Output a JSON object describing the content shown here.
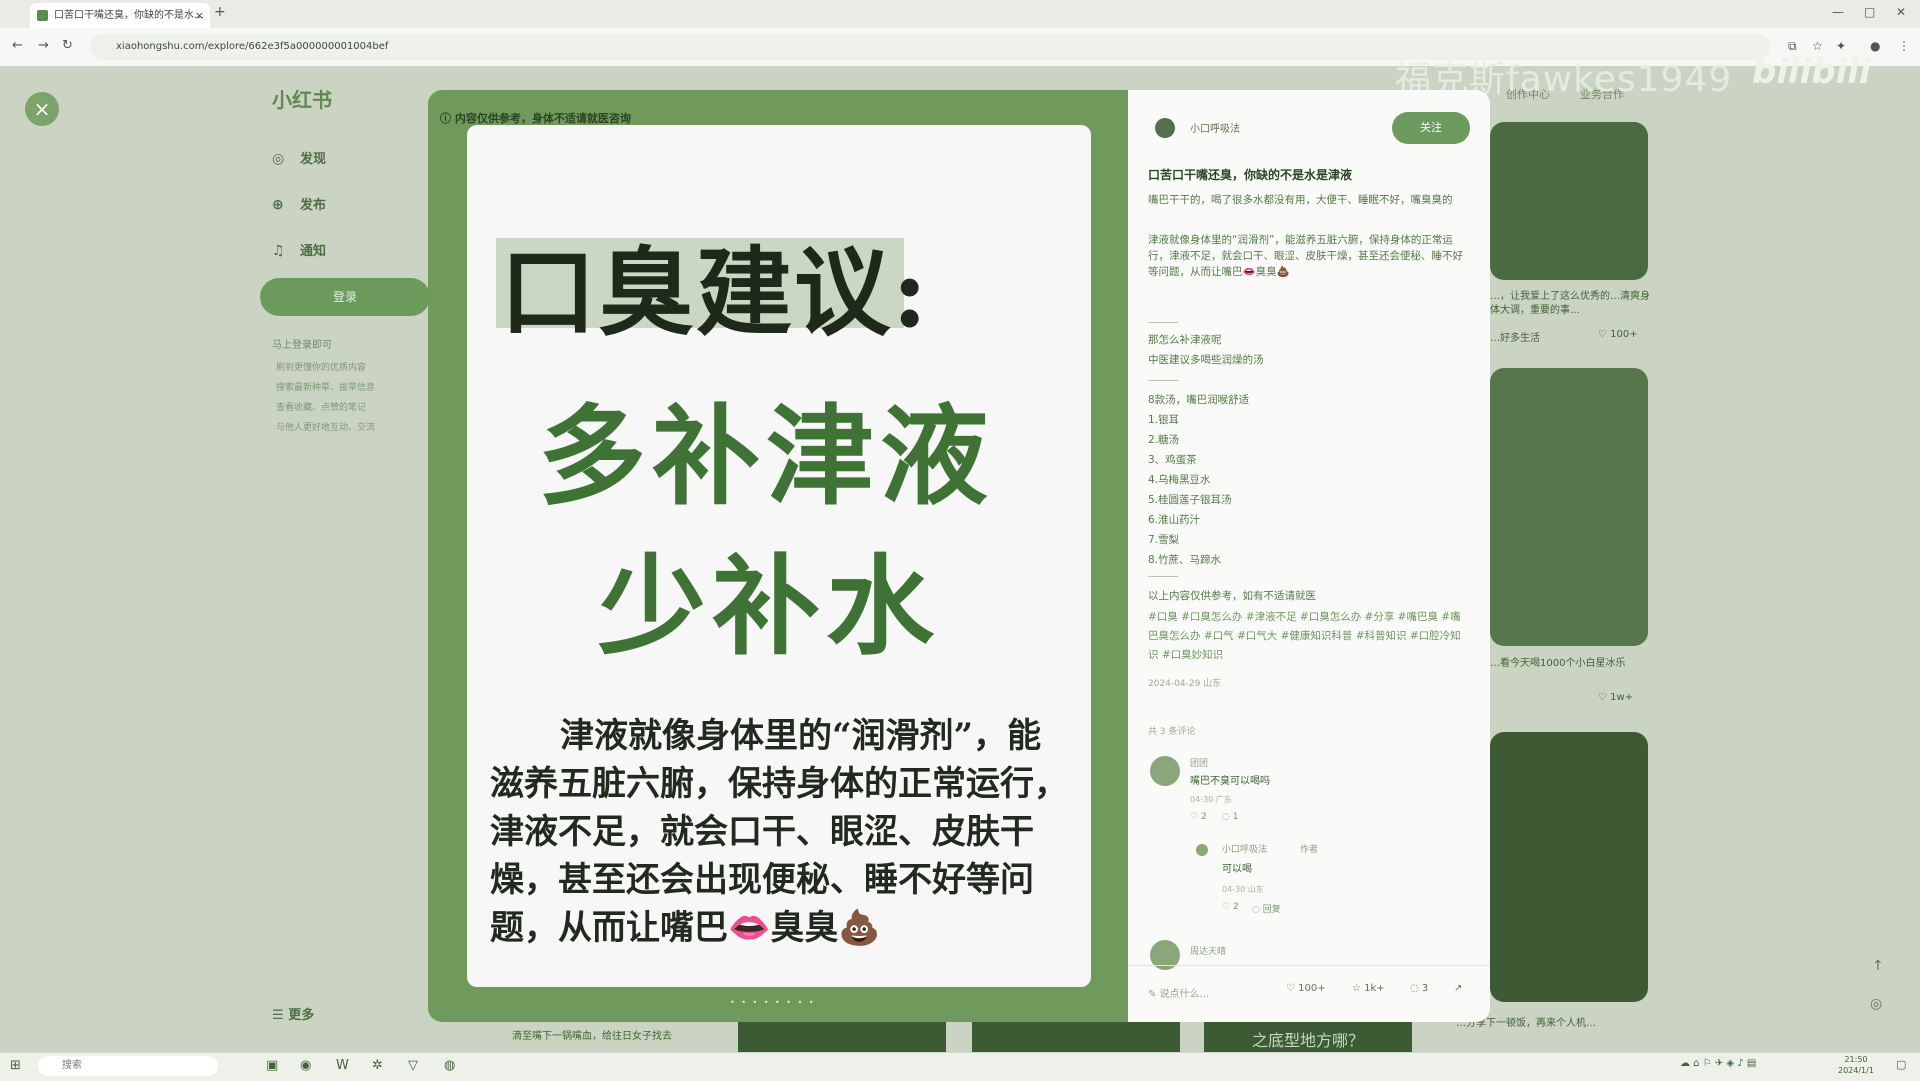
{
  "browser": {
    "tab_title": "口苦口干嘴还臭，你缺的不是水…",
    "new_tab_icon": "+",
    "url": "xiaohongshu.com/explore/662e3f5a000000001004bef"
  },
  "site": {
    "logo": "小红书",
    "nav": [
      {
        "label": "发现",
        "icon": "compass-icon"
      },
      {
        "label": "发布",
        "icon": "plus-icon"
      },
      {
        "label": "通知",
        "icon": "bell-icon"
      }
    ],
    "login": "登录",
    "sidebar_heading": "马上登录即可",
    "sidebar_lines": [
      "刷到更懂你的优质内容",
      "搜索最新种草、拔草信息",
      "查看收藏、点赞的笔记",
      "与他人更好地互动、交流"
    ],
    "more": "更多",
    "top_links": [
      "创作中心",
      "业务合作"
    ],
    "watermark": "福克斯fawkes1949",
    "bili": "bilibili"
  },
  "feed": {
    "cards": [
      {
        "caption": "…，让我爱上了这么优秀的…清爽身体大调，重要的事…",
        "author": "…好多生活",
        "likes": "100+"
      },
      {
        "caption": "…看今天喝1000个小白星冰乐",
        "author": "…",
        "likes": "1w+"
      },
      {
        "caption": "…分享下一顿饭，再来个人机…",
        "author": "…",
        "likes": ""
      }
    ],
    "bottom_captions": [
      "滴至嘴下一锅嘴血，给往日女子找去",
      "之底型地方哪？"
    ]
  },
  "modal": {
    "strip_text": "内容仅供参考，身体不适请就医咨询",
    "poster": {
      "title": "口臭建议:",
      "line1": "多补津液",
      "line2": "少补水",
      "body": "津液就像身体里的“润滑剂”，能滋养五脏六腑，保持身体的正常运行，津液不足，就会口干、眼涩、皮肤干燥，甚至还会出现便秘、睡不好等问题，从而让嘴巴👄臭臭💩"
    },
    "page_dots": "• • • • • • • •",
    "author": "小口呼吸法",
    "follow": "关注",
    "note_title": "口苦口干嘴还臭，你缺的不是水是津液",
    "note_intro": "嘴巴干干的，喝了很多水都没有用，大便干、睡眠不好，嘴臭臭的",
    "note_para": "津液就像身体里的“润滑剂”，能滋养五脏六腑，保持身体的正常运行，津液不足，就会口干、眼涩、皮肤干燥，甚至还会便秘、睡不好等问题，从而让嘴巴👄臭臭💩",
    "q_line1": "那怎么补津液呢",
    "q_line2": "中医建议多喝些润燥的汤",
    "list_head": "8款汤，嘴巴润喉舒适",
    "list": [
      "1.银耳",
      "2.糖汤",
      "3、鸡蛋茶",
      "4.乌梅黑豆水",
      "5.桂圆莲子银耳汤",
      "6.淮山药汁",
      "7.雪梨",
      "8.竹蔗、马蹄水"
    ],
    "disclaimer": "以上内容仅供参考，如有不适请就医",
    "tags": "#口臭 #口臭怎么办 #津液不足 #口臭怎么办 #分享 #嘴巴臭 #嘴巴臭怎么办 #口气 #口气大 #健康知识科普 #科普知识 #口腔冷知识 #口臭妙知识",
    "date": "2024-04-29 山东",
    "comment_count": "共 3 条评论",
    "comments": [
      {
        "name": "团团",
        "text": "嘴巴不臭可以喝吗",
        "meta": "04-30 广东",
        "likes": "2",
        "replies": "1"
      },
      {
        "name": "小口呼吸法",
        "badge": "作者",
        "text": "可以喝",
        "meta": "04-30 山东",
        "likes": "2",
        "replies": "回复"
      },
      {
        "name": "周达天晴",
        "text": "",
        "meta": "",
        "likes": "",
        "replies": ""
      }
    ],
    "comment_placeholder": "说点什么...",
    "stats": {
      "likes": "100+",
      "stars": "1k+",
      "comments": "3"
    }
  },
  "taskbar": {
    "search_placeholder": "搜索",
    "time": "21:50",
    "date": "2024/1/1"
  }
}
